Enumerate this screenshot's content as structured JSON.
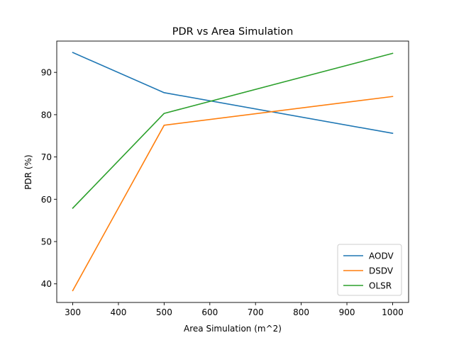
{
  "chart_data": {
    "type": "line",
    "title": "PDR vs Area Simulation",
    "xlabel": "Area Simulation (m^2)",
    "ylabel": "PDR (%)",
    "x": [
      300,
      500,
      1000
    ],
    "xlim": [
      265,
      1035
    ],
    "ylim": [
      35.6,
      97.4
    ],
    "xticks": [
      300,
      400,
      500,
      600,
      700,
      800,
      900,
      1000
    ],
    "yticks": [
      40,
      50,
      60,
      70,
      80,
      90
    ],
    "grid": false,
    "legend_position": "lower-right",
    "series": [
      {
        "name": "AODV",
        "values": [
          94.7,
          85.2,
          75.6
        ],
        "color": "#1f77b4"
      },
      {
        "name": "DSDV",
        "values": [
          38.4,
          77.5,
          84.3
        ],
        "color": "#ff7f0e"
      },
      {
        "name": "OLSR",
        "values": [
          57.9,
          80.3,
          94.5
        ],
        "color": "#2ca02c"
      }
    ]
  }
}
